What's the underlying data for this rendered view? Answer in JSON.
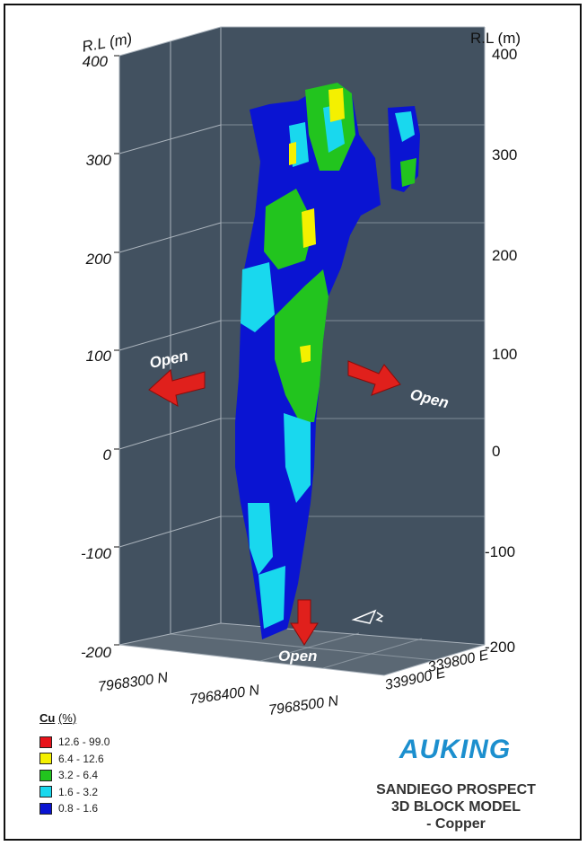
{
  "axis": {
    "rl_label_left": "R.L (m)",
    "rl_label_right": "R.L (m)",
    "z_ticks": [
      "400",
      "300",
      "200",
      "100",
      "0",
      "-100",
      "-200"
    ],
    "north_ticks": [
      "7968300 N",
      "7968400 N",
      "7968500 N"
    ],
    "east_ticks": [
      "339800 E",
      "339900 E"
    ]
  },
  "annotations": {
    "open_left": "Open",
    "open_right": "Open",
    "open_bottom": "Open"
  },
  "legend": {
    "title": "Cu",
    "unit": "(%)",
    "items": [
      {
        "label": "12.6 - 99.0",
        "color": "#e8121a"
      },
      {
        "label": "6.4 - 12.6",
        "color": "#f4f000"
      },
      {
        "label": "3.2 - 6.4",
        "color": "#22c41e"
      },
      {
        "label": "1.6 - 3.2",
        "color": "#19d8ee"
      },
      {
        "label": "0.8 - 1.6",
        "color": "#0a14d2"
      }
    ]
  },
  "brand": {
    "logo_left": "AU",
    "logo_k": "K",
    "logo_right": "ING"
  },
  "title": {
    "line1": "SANDIEGO PROSPECT",
    "line2": "3D BLOCK MODEL",
    "line3": "- Copper"
  },
  "colors": {
    "box_back": "#425160",
    "box_floor": "#596672",
    "grid": "#b0b8c0",
    "arrow": "#e0201c"
  }
}
